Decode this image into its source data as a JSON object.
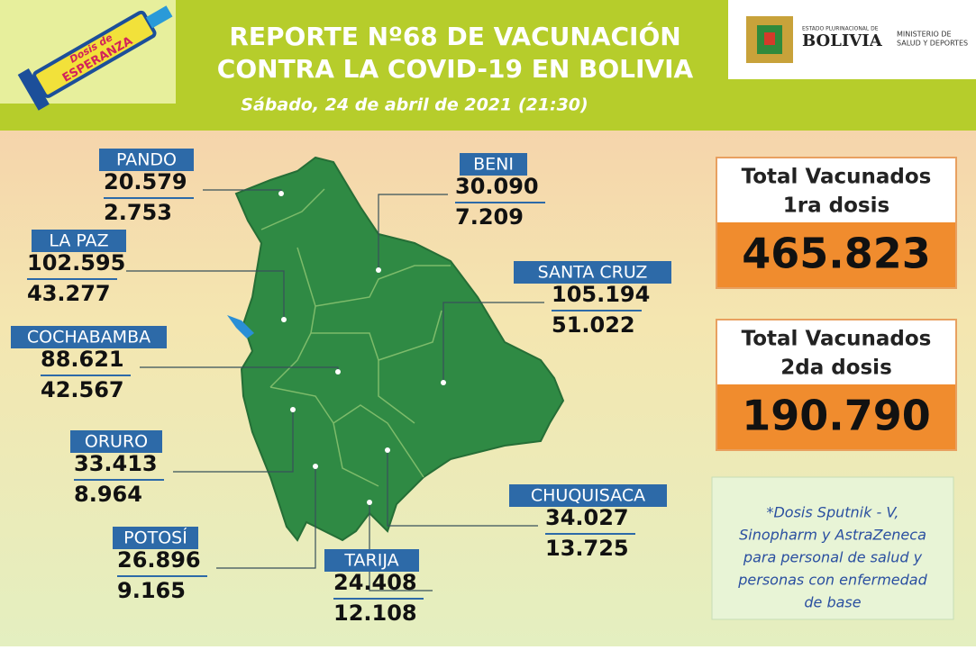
{
  "header": {
    "logo_left": [
      "Dosis de",
      "ESPERANZA"
    ],
    "title_lines": [
      "REPORTE Nº68 DE VACUNACIÓN",
      "CONTRA LA COVID-19 EN BOLIVIA"
    ],
    "date": "Sábado, 24 de abril de 2021 (21:30)",
    "logo_right": {
      "state": "ESTADO PLURINACIONAL DE",
      "country": "BOLIVIA",
      "ministry": [
        "MINISTERIO DE",
        "SALUD Y DEPORTES"
      ]
    }
  },
  "departments": [
    {
      "name": "PANDO",
      "dose1": "20.579",
      "dose2": "2.753"
    },
    {
      "name": "LA PAZ",
      "dose1": "102.595",
      "dose2": "43.277"
    },
    {
      "name": "COCHABAMBA",
      "dose1": "88.621",
      "dose2": "42.567"
    },
    {
      "name": "ORURO",
      "dose1": "33.413",
      "dose2": "8.964"
    },
    {
      "name": "POTOSÍ",
      "dose1": "26.896",
      "dose2": "9.165"
    },
    {
      "name": "TARIJA",
      "dose1": "24.408",
      "dose2": "12.108"
    },
    {
      "name": "CHUQUISACA",
      "dose1": "34.027",
      "dose2": "13.725"
    },
    {
      "name": "BENI",
      "dose1": "30.090",
      "dose2": "7.209"
    },
    {
      "name": "SANTA CRUZ",
      "dose1": "105.194",
      "dose2": "51.022"
    }
  ],
  "totals": [
    {
      "label": [
        "Total Vacunados",
        "1ra dosis"
      ],
      "value": "465.823"
    },
    {
      "label": [
        "Total Vacunados",
        "2da dosis"
      ],
      "value": "190.790"
    }
  ],
  "note": [
    "*Dosis Sputnik - V,",
    "Sinopharm y AstraZeneca",
    "para personal de salud y",
    "personas con enfermedad",
    "de base"
  ]
}
